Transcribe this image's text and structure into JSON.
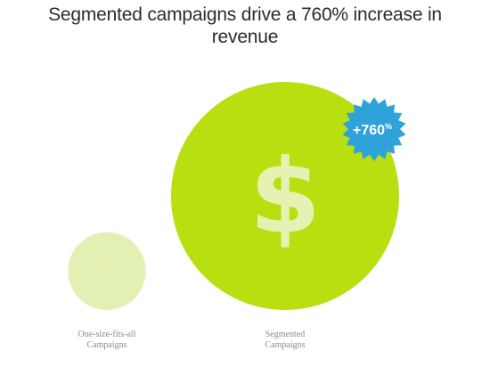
{
  "colors": {
    "circle": "#b8df10",
    "circle_small": "#e2f0b4",
    "dollar_glyph": "#e6f2b3",
    "badge": "#2fa3d9",
    "title": "#2c2c2c",
    "label": "#8c8c8c"
  },
  "chart_data": {
    "type": "bubble",
    "title_lines": [
      "Segmented campaigns drive a 760% increase in",
      "revenue"
    ],
    "categories": [
      {
        "label_lines": [
          "One-size-fits-all",
          "Campaigns"
        ],
        "relative_revenue": 1,
        "icon": "dollar-sign-icon",
        "icon_text": "$"
      },
      {
        "label_lines": [
          "Segmented",
          "Campaigns"
        ],
        "relative_revenue": 8.6,
        "icon": "dollar-sign-icon",
        "icon_text": "$"
      }
    ],
    "annotation": {
      "value": "+760",
      "unit": "%",
      "shape": "starburst-badge"
    },
    "axes": "none",
    "grid": false,
    "legend": "none"
  }
}
